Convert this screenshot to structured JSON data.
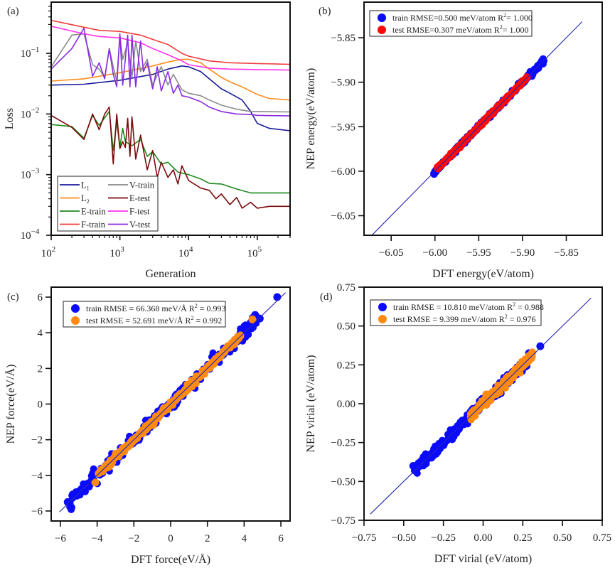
{
  "chart_data": [
    {
      "id": "a",
      "type": "line",
      "panel_label": "(a)",
      "xlabel": "Generation",
      "ylabel": "Loss",
      "xscale": "log",
      "yscale": "log",
      "xlim": [
        100,
        300000
      ],
      "ylim": [
        0.0001,
        0.7
      ],
      "xticks": [
        {
          "value": 100,
          "base": "10",
          "exp": "2"
        },
        {
          "value": 1000,
          "base": "10",
          "exp": "3"
        },
        {
          "value": 10000,
          "base": "10",
          "exp": "4"
        },
        {
          "value": 100000,
          "base": "10",
          "exp": "5"
        }
      ],
      "yticks": [
        {
          "value": 0.0001,
          "base": "10",
          "exp": "−4"
        },
        {
          "value": 0.001,
          "base": "10",
          "exp": "−3"
        },
        {
          "value": 0.01,
          "base": "10",
          "exp": "−2"
        },
        {
          "value": 0.1,
          "base": "10",
          "exp": "−1"
        }
      ],
      "legend_position": "bottom-left",
      "legend_columns": 2,
      "series": [
        {
          "name": "L1",
          "label_main": "L",
          "label_sub": "1",
          "color": "#1a1a9c",
          "x": [
            100,
            300,
            1000,
            3000,
            5000,
            8000,
            10000,
            15000,
            20000,
            30000,
            40000,
            60000,
            80000,
            100000,
            150000,
            300000
          ],
          "y": [
            0.03,
            0.031,
            0.036,
            0.045,
            0.055,
            0.062,
            0.06,
            0.05,
            0.038,
            0.026,
            0.022,
            0.017,
            0.011,
            0.007,
            0.0058,
            0.0053
          ]
        },
        {
          "name": "L2",
          "label_main": "L",
          "label_sub": "2",
          "color": "#ff8c1a",
          "x": [
            100,
            300,
            1000,
            3000,
            5000,
            8000,
            10000,
            15000,
            20000,
            30000,
            40000,
            60000,
            100000,
            150000,
            300000
          ],
          "y": [
            0.035,
            0.038,
            0.048,
            0.062,
            0.072,
            0.08,
            0.08,
            0.07,
            0.055,
            0.04,
            0.034,
            0.028,
            0.021,
            0.018,
            0.017
          ]
        },
        {
          "name": "E-train",
          "color": "#1e8a1e",
          "x": [
            100,
            200,
            300,
            400,
            500,
            700,
            800,
            900,
            1000,
            1100,
            1200,
            1500,
            2000,
            2500,
            3000,
            4000,
            5000,
            7000,
            10000,
            15000,
            20000,
            30000,
            50000,
            80000,
            100000,
            300000
          ],
          "y": [
            0.0067,
            0.0062,
            0.004,
            0.0095,
            0.0065,
            0.011,
            0.0025,
            0.0075,
            0.0028,
            0.0058,
            0.0035,
            0.003,
            0.0038,
            0.002,
            0.0024,
            0.0015,
            0.0016,
            0.0011,
            0.001,
            0.00085,
            0.00072,
            0.0007,
            0.00058,
            0.0005,
            0.0005,
            0.0005
          ]
        },
        {
          "name": "F-train",
          "color": "#f03c3c",
          "x": [
            100,
            300,
            500,
            1000,
            2000,
            3000,
            5000,
            8000,
            10000,
            20000,
            40000,
            100000,
            300000
          ],
          "y": [
            0.35,
            0.27,
            0.24,
            0.23,
            0.2,
            0.17,
            0.14,
            0.1,
            0.09,
            0.075,
            0.07,
            0.068,
            0.066
          ]
        },
        {
          "name": "V-train",
          "color": "#8a8a8a",
          "x": [
            100,
            200,
            300,
            400,
            500,
            600,
            700,
            800,
            900,
            1000,
            1100,
            1300,
            1500,
            1700,
            2000,
            2500,
            3000,
            4000,
            5000,
            6000,
            8000,
            10000,
            15000,
            20000,
            30000,
            50000,
            80000,
            100000,
            300000
          ],
          "y": [
            0.06,
            0.2,
            0.21,
            0.065,
            0.055,
            0.04,
            0.12,
            0.06,
            0.035,
            0.2,
            0.08,
            0.15,
            0.04,
            0.16,
            0.05,
            0.08,
            0.03,
            0.06,
            0.03,
            0.045,
            0.025,
            0.022,
            0.02,
            0.017,
            0.014,
            0.012,
            0.011,
            0.011,
            0.0108
          ]
        },
        {
          "name": "E-test",
          "color": "#7a0a0a",
          "x": [
            100,
            200,
            300,
            400,
            500,
            600,
            700,
            800,
            900,
            1000,
            1100,
            1200,
            1300,
            1400,
            1500,
            1700,
            2000,
            2500,
            3000,
            3500,
            4000,
            5000,
            6000,
            7000,
            8000,
            10000,
            15000,
            20000,
            25000,
            30000,
            40000,
            50000,
            60000,
            80000,
            100000,
            150000,
            300000
          ],
          "y": [
            0.0095,
            0.006,
            0.0038,
            0.01,
            0.0055,
            0.01,
            0.013,
            0.0015,
            0.01,
            0.0027,
            0.0035,
            0.0028,
            0.0085,
            0.002,
            0.009,
            0.0018,
            0.0045,
            0.0012,
            0.0025,
            0.0009,
            0.0016,
            0.0009,
            0.0012,
            0.0007,
            0.0014,
            0.0008,
            0.0006,
            0.00055,
            0.0004,
            0.00048,
            0.00032,
            0.00042,
            0.00028,
            0.00035,
            0.00028,
            0.0003,
            0.0003
          ]
        },
        {
          "name": "F-test",
          "color": "#ff33ee",
          "x": [
            100,
            300,
            500,
            1000,
            2000,
            3000,
            5000,
            8000,
            10000,
            20000,
            40000,
            100000,
            300000
          ],
          "y": [
            0.28,
            0.21,
            0.19,
            0.18,
            0.15,
            0.12,
            0.095,
            0.075,
            0.065,
            0.057,
            0.055,
            0.054,
            0.053
          ]
        },
        {
          "name": "V-test",
          "color": "#8a2be2",
          "x": [
            100,
            200,
            300,
            400,
            500,
            600,
            700,
            800,
            900,
            1000,
            1100,
            1300,
            1400,
            1500,
            1700,
            2000,
            2200,
            2500,
            3000,
            3500,
            4000,
            5000,
            6000,
            7000,
            8000,
            10000,
            15000,
            20000,
            30000,
            50000,
            80000,
            100000,
            300000
          ],
          "y": [
            0.055,
            0.12,
            0.26,
            0.042,
            0.07,
            0.038,
            0.12,
            0.045,
            0.028,
            0.21,
            0.03,
            0.2,
            0.028,
            0.2,
            0.028,
            0.16,
            0.05,
            0.07,
            0.026,
            0.06,
            0.024,
            0.05,
            0.022,
            0.03,
            0.02,
            0.019,
            0.016,
            0.013,
            0.011,
            0.01,
            0.0098,
            0.0095,
            0.0093
          ]
        }
      ]
    },
    {
      "id": "b",
      "type": "scatter",
      "panel_label": "(b)",
      "xlabel": "DFT energy(eV/atom)",
      "ylabel": "NEP energy(eV/atom)",
      "xlim": [
        -6.081,
        -5.809
      ],
      "ylim": [
        -6.072,
        -5.81
      ],
      "xticks": [
        -6.05,
        -6.0,
        -5.95,
        -5.9,
        -5.85
      ],
      "yticks": [
        -6.05,
        -6.0,
        -5.95,
        -5.9,
        -5.85
      ],
      "tick_format": "fixed2",
      "diagonal": {
        "from": -6.072,
        "to": -5.832,
        "color": "#2727b5"
      },
      "legend_position": "top-left",
      "series": [
        {
          "name": "train",
          "color": "#0a0aff",
          "legend_text": "train RMSE=0.500 meV/atom R",
          "legend_sup": "2",
          "legend_tail": "= 1.000",
          "rmse": "0.500 meV/atom",
          "r2": 1.0,
          "x_range": [
            -6.001,
            -5.876
          ],
          "noise": 0.0012,
          "outliers": [
            [
              -6.001,
              -6.003
            ],
            [
              -5.876,
              -5.876
            ],
            [
              -5.882,
              -5.884
            ]
          ]
        },
        {
          "name": "test",
          "color": "#ff0a0a",
          "legend_text": "test RMSE=0.307 meV/atom R",
          "legend_sup": "2",
          "legend_tail": "= 1.000",
          "rmse": "0.307 meV/atom",
          "r2": 1.0,
          "x_range": [
            -5.997,
            -5.895
          ],
          "noise": 0.0008,
          "outliers": [
            [
              -5.92,
              -5.921
            ]
          ]
        }
      ]
    },
    {
      "id": "c",
      "type": "scatter",
      "panel_label": "(c)",
      "xlabel": "DFT force(eV/Å)",
      "ylabel": "NEP force(eV/Å)",
      "xlim": [
        -6.5,
        6.5
      ],
      "ylim": [
        -6.56,
        6.56
      ],
      "xticks": [
        -6,
        -4,
        -2,
        0,
        2,
        4,
        6
      ],
      "yticks": [
        -6,
        -4,
        -2,
        0,
        2,
        4,
        6
      ],
      "tick_format": "int",
      "diagonal": {
        "from": -6.05,
        "to": 6.25,
        "color": "#2727b5"
      },
      "legend_position": "top-left",
      "series": [
        {
          "name": "train",
          "color": "#0a0aff",
          "legend_text": "train RMSE = 66.368 meV/Å R",
          "legend_sup": "2",
          "legend_tail": " = 0.993",
          "rmse": "66.368 meV/Å",
          "r2": 0.993,
          "x_range": [
            -5.5,
            4.8
          ],
          "noise": 0.18,
          "outliers": [
            [
              5.8,
              6.0
            ],
            [
              -5.4,
              -5.8
            ],
            [
              -5.6,
              -5.5
            ],
            [
              4.6,
              5.0
            ],
            [
              4.85,
              4.8
            ]
          ]
        },
        {
          "name": "test",
          "color": "#ff8a12",
          "legend_text": "test RMSE = 52.691 meV/Å R",
          "legend_sup": "2",
          "legend_tail": " = 0.992",
          "rmse": "52.691 meV/Å",
          "r2": 0.992,
          "x_range": [
            -3.9,
            3.8
          ],
          "noise": 0.09,
          "outliers": [
            [
              -4.1,
              -4.4
            ],
            [
              4.45,
              4.75
            ]
          ]
        }
      ]
    },
    {
      "id": "d",
      "type": "scatter",
      "panel_label": "(d)",
      "xlabel": "DFT virial (eV/atom)",
      "ylabel": "NEP virial (eV/atom)",
      "xlim": [
        -0.75,
        0.75
      ],
      "ylim": [
        -0.75,
        0.75
      ],
      "xticks": [
        -0.75,
        -0.5,
        -0.25,
        0.0,
        0.25,
        0.5,
        0.75
      ],
      "yticks": [
        -0.75,
        -0.5,
        -0.25,
        0.0,
        0.25,
        0.5,
        0.75
      ],
      "tick_format": "fixed2",
      "diagonal": {
        "from": -0.71,
        "to": 0.68,
        "color": "#2727b5"
      },
      "legend_position": "top-left",
      "series": [
        {
          "name": "train",
          "color": "#0a0aff",
          "legend_text": "train RMSE = 10.810 meV/atom R",
          "legend_sup": "2",
          "legend_tail": " = 0.988",
          "rmse": "10.810 meV/atom",
          "r2": 0.988,
          "x_range": [
            -0.42,
            0.3
          ],
          "noise": 0.018,
          "outliers": [
            [
              0.36,
              0.37
            ],
            [
              -0.43,
              -0.43
            ],
            [
              -0.44,
              -0.4
            ]
          ]
        },
        {
          "name": "test",
          "color": "#ff8a12",
          "legend_text": "test RMSE = 9.399 meV/atom R",
          "legend_sup": "2",
          "legend_tail": " = 0.976",
          "rmse": "9.399 meV/atom",
          "r2": 0.976,
          "x_range": [
            -0.08,
            0.31
          ],
          "noise": 0.012,
          "outliers": [
            [
              0.31,
              0.33
            ],
            [
              0.02,
              0.06
            ]
          ]
        }
      ]
    }
  ]
}
